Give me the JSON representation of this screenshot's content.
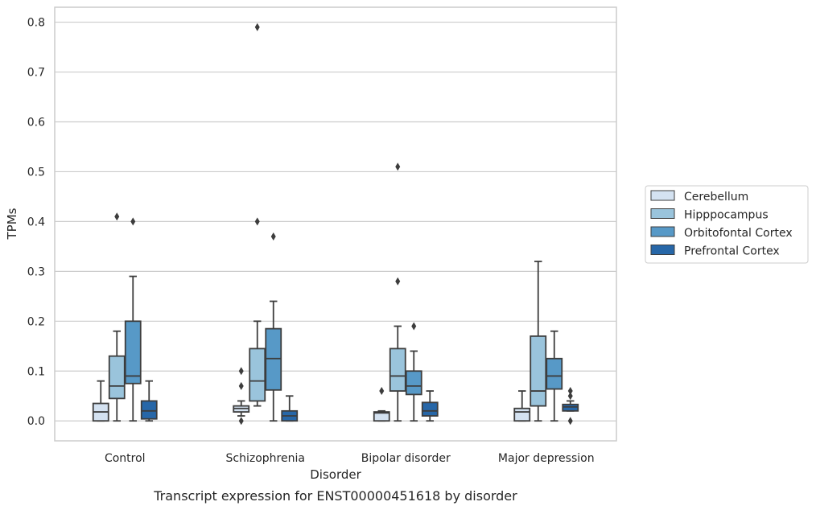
{
  "chart_data": {
    "type": "boxplot",
    "title": "",
    "caption": "Transcript expression for ENST00000451618 by disorder",
    "xlabel": "Disorder",
    "ylabel": "TPMs",
    "ylim": [
      -0.04,
      0.83
    ],
    "yticks": [
      "0.0",
      "0.1",
      "0.2",
      "0.3",
      "0.4",
      "0.5",
      "0.6",
      "0.7",
      "0.8"
    ],
    "grid": "horizontal",
    "legend_position": "right",
    "categories": [
      "Control",
      "Schizophrenia",
      "Bipolar disorder",
      "Major depression"
    ],
    "series": [
      {
        "name": "Cerebellum",
        "color": "#d4e2f1",
        "boxes": [
          {
            "whislo": 0.0,
            "q1": 0.0,
            "med": 0.018,
            "q3": 0.035,
            "whishi": 0.08,
            "fliers": []
          },
          {
            "whislo": 0.01,
            "q1": 0.018,
            "med": 0.025,
            "q3": 0.03,
            "whishi": 0.04,
            "fliers": [
              0.1,
              0.07,
              0.0
            ]
          },
          {
            "whislo": 0.0,
            "q1": 0.0,
            "med": 0.016,
            "q3": 0.018,
            "whishi": 0.02,
            "fliers": [
              0.06
            ]
          },
          {
            "whislo": 0.0,
            "q1": 0.0,
            "med": 0.018,
            "q3": 0.025,
            "whishi": 0.06,
            "fliers": []
          }
        ]
      },
      {
        "name": "Hipppocampus",
        "color": "#9ac4dc",
        "boxes": [
          {
            "whislo": 0.0,
            "q1": 0.045,
            "med": 0.07,
            "q3": 0.13,
            "whishi": 0.18,
            "fliers": [
              0.41
            ]
          },
          {
            "whislo": 0.03,
            "q1": 0.04,
            "med": 0.08,
            "q3": 0.145,
            "whishi": 0.2,
            "fliers": [
              0.79,
              0.4
            ]
          },
          {
            "whislo": 0.0,
            "q1": 0.06,
            "med": 0.09,
            "q3": 0.145,
            "whishi": 0.19,
            "fliers": [
              0.51,
              0.28
            ]
          },
          {
            "whislo": 0.0,
            "q1": 0.03,
            "med": 0.06,
            "q3": 0.17,
            "whishi": 0.32,
            "fliers": []
          }
        ]
      },
      {
        "name": "Orbitofontal Cortex",
        "color": "#5799c7",
        "boxes": [
          {
            "whislo": 0.0,
            "q1": 0.075,
            "med": 0.09,
            "q3": 0.2,
            "whishi": 0.29,
            "fliers": [
              0.4
            ]
          },
          {
            "whislo": 0.0,
            "q1": 0.062,
            "med": 0.125,
            "q3": 0.185,
            "whishi": 0.24,
            "fliers": [
              0.37
            ]
          },
          {
            "whislo": 0.0,
            "q1": 0.053,
            "med": 0.07,
            "q3": 0.1,
            "whishi": 0.14,
            "fliers": [
              0.19
            ]
          },
          {
            "whislo": 0.0,
            "q1": 0.064,
            "med": 0.09,
            "q3": 0.125,
            "whishi": 0.18,
            "fliers": []
          }
        ]
      },
      {
        "name": "Prefrontal Cortex",
        "color": "#2767a8",
        "boxes": [
          {
            "whislo": 0.0,
            "q1": 0.004,
            "med": 0.02,
            "q3": 0.04,
            "whishi": 0.08,
            "fliers": []
          },
          {
            "whislo": 0.0,
            "q1": 0.0,
            "med": 0.01,
            "q3": 0.02,
            "whishi": 0.05,
            "fliers": []
          },
          {
            "whislo": 0.0,
            "q1": 0.01,
            "med": 0.02,
            "q3": 0.037,
            "whishi": 0.06,
            "fliers": []
          },
          {
            "whislo": 0.02,
            "q1": 0.02,
            "med": 0.028,
            "q3": 0.033,
            "whishi": 0.04,
            "fliers": [
              0.06,
              0.05,
              0.0
            ]
          }
        ]
      }
    ]
  }
}
